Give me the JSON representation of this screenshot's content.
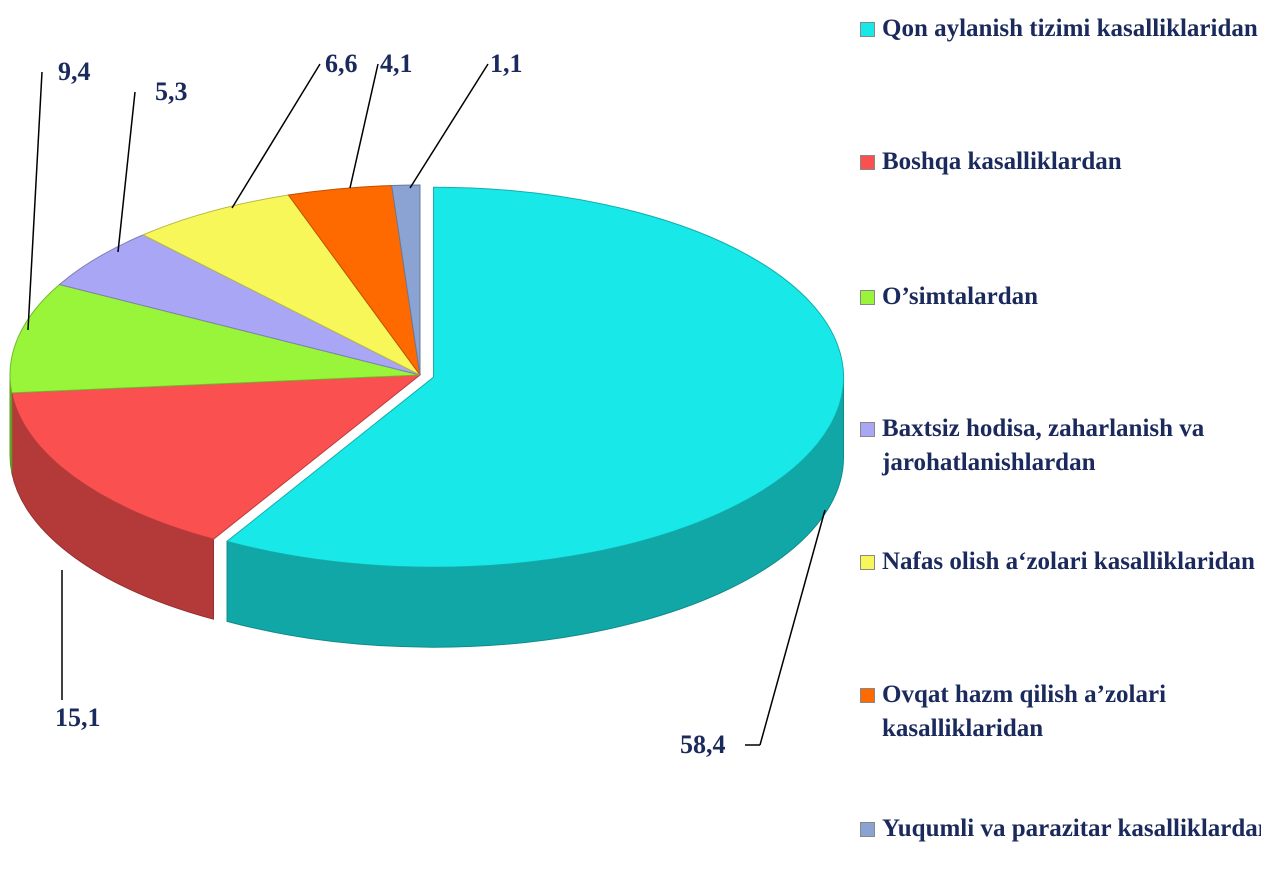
{
  "chart_data": {
    "type": "pie",
    "categories": [
      "Qon aylanish tizimi kasalliklaridan",
      "Boshqa kasalliklardan",
      "O’simtalardan",
      "Baxtsiz hodisa, zaharlanish va jarohatlanishlardan",
      "Nafas olish a‘zolari kasalliklaridan",
      "Ovqat hazm qilish a’zolari kasalliklaridan",
      "Yuqumli va parazitar kasalliklardan"
    ],
    "values": [
      58.4,
      15.1,
      9.4,
      5.3,
      6.6,
      4.1,
      1.1
    ],
    "value_labels": [
      "58,4",
      "15,1",
      "9,4",
      "5,3",
      "6,6",
      "4,1",
      "1,1"
    ],
    "colors": [
      "#19e8e8",
      "#fa5050",
      "#99f53a",
      "#a9a6f5",
      "#f8f75a",
      "#ff6a00",
      "#8ba3d3"
    ],
    "legend": "right"
  }
}
